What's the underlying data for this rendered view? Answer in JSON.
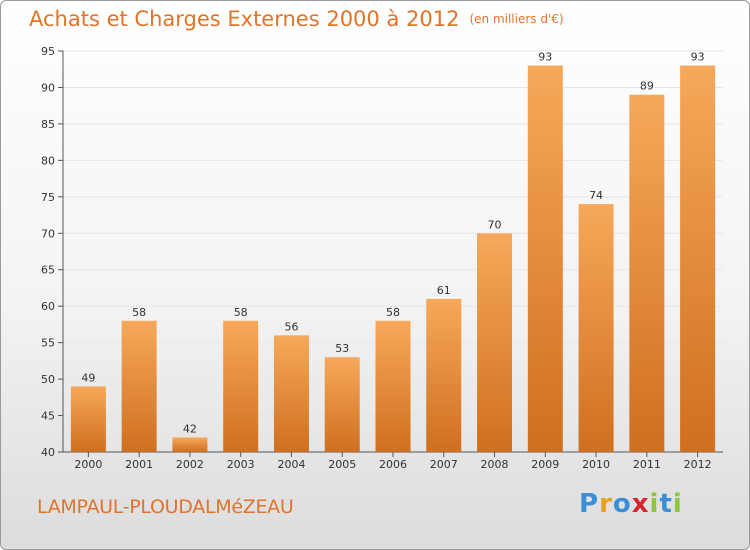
{
  "header": {
    "title": "Achats et Charges Externes 2000 à 2012",
    "unit": "(en milliers d'€)"
  },
  "footer": {
    "place": "LAMPAUL-PLOUDALMéZEAU",
    "brand": "Proxiti",
    "brand_letters": [
      {
        "ch": "P",
        "color": "#3a8fd6"
      },
      {
        "ch": "r",
        "color": "#e8a11f"
      },
      {
        "ch": "o",
        "color": "#3a8fd6"
      },
      {
        "ch": "x",
        "color": "#d6262d"
      },
      {
        "ch": "i",
        "color": "#8cc63e"
      },
      {
        "ch": "t",
        "color": "#3a8fd6"
      },
      {
        "ch": "i",
        "color": "#8cc63e"
      }
    ]
  },
  "colors": {
    "bar_light": "#f7a85a",
    "bar_dark": "#cf6f1f",
    "accent": "#e2732a",
    "grid": "#e6e6e6",
    "axis": "#555555"
  },
  "chart_data": {
    "type": "bar",
    "title": "Achats et Charges Externes 2000 à 2012",
    "subtitle": "(en milliers d'€)",
    "xlabel": "",
    "ylabel": "",
    "categories": [
      "2000",
      "2001",
      "2002",
      "2003",
      "2004",
      "2005",
      "2006",
      "2007",
      "2008",
      "2009",
      "2010",
      "2011",
      "2012"
    ],
    "values": [
      49,
      58,
      42,
      58,
      56,
      53,
      58,
      61,
      70,
      93,
      74,
      89,
      93
    ],
    "ylim": [
      40,
      95
    ],
    "yticks": [
      40,
      45,
      50,
      55,
      60,
      65,
      70,
      75,
      80,
      85,
      90,
      95
    ],
    "grid": true,
    "legend": "none"
  }
}
